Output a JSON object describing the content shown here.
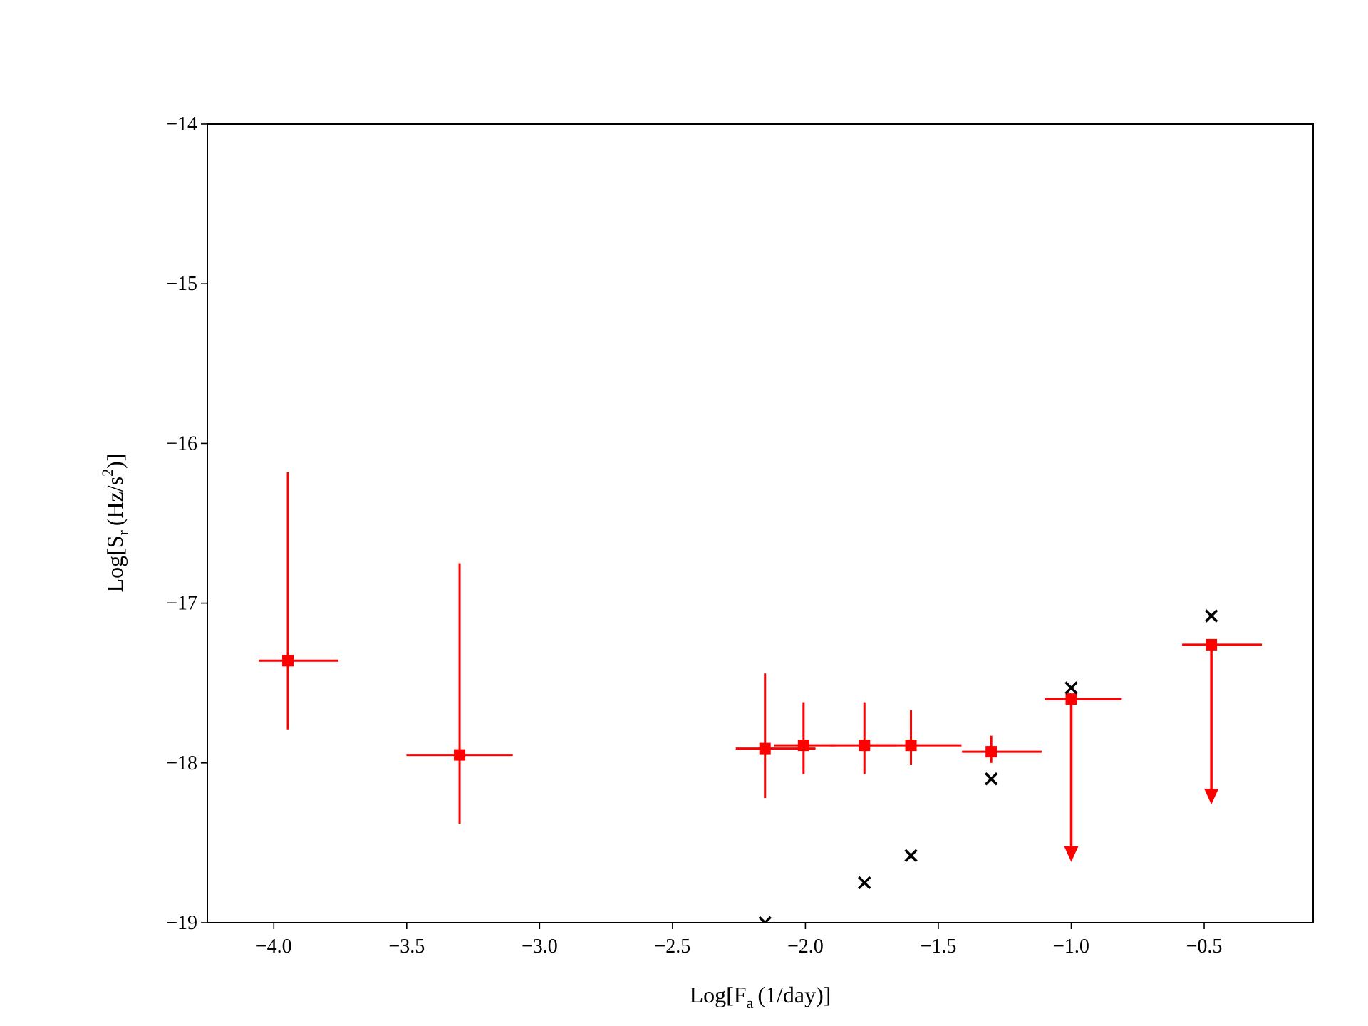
{
  "chart_data": {
    "type": "scatter",
    "xlabel": {
      "main": "Log[F",
      "sub": "a",
      "rest": "(1/day)]"
    },
    "ylabel": {
      "main": "Log[S",
      "sub": "r",
      "mid": "(Hz/s",
      "sup": "2",
      "rest": ")]"
    },
    "xlim": [
      -4.25,
      -0.09
    ],
    "ylim": [
      -19,
      -14
    ],
    "xticks": [
      {
        "value": -4.0,
        "label": "−4.0"
      },
      {
        "value": -3.5,
        "label": "−3.5"
      },
      {
        "value": -3.0,
        "label": "−3.0"
      },
      {
        "value": -2.5,
        "label": "−2.5"
      },
      {
        "value": -2.0,
        "label": "−2.0"
      },
      {
        "value": -1.5,
        "label": "−1.5"
      },
      {
        "value": -1.0,
        "label": "−1.0"
      },
      {
        "value": -0.5,
        "label": "−0.5"
      }
    ],
    "yticks": [
      {
        "value": -19,
        "label": "−19"
      },
      {
        "value": -18,
        "label": "−18"
      },
      {
        "value": -17,
        "label": "−17"
      },
      {
        "value": -16,
        "label": "−16"
      },
      {
        "value": -15,
        "label": "−15"
      },
      {
        "value": -14,
        "label": "−14"
      }
    ],
    "series": [
      {
        "color": "#ff0000",
        "marker": "square",
        "x": [
          -3.947,
          -3.301,
          -2.152,
          -2.007,
          -1.778,
          -1.603,
          -1.301,
          -1.0,
          -0.473
        ],
        "values": [
          -17.36,
          -17.95,
          -17.91,
          -17.89,
          -17.89,
          -17.89,
          -17.93,
          -17.6,
          -17.26
        ],
        "x_err_minus": [
          0.11,
          0.2,
          0.11,
          0.11,
          0.13,
          0.18,
          0.11,
          0.1,
          0.11
        ],
        "x_err_plus": [
          0.19,
          0.2,
          0.19,
          0.12,
          0.12,
          0.19,
          0.19,
          0.19,
          0.19
        ],
        "y_err_plus": [
          1.18,
          1.2,
          0.47,
          0.27,
          0.27,
          0.22,
          0.1,
          0,
          0
        ],
        "y_err_minus": [
          0.43,
          0.43,
          0.31,
          0.18,
          0.18,
          0.12,
          0.07,
          1.02,
          1.0
        ],
        "upper_limit": [
          false,
          false,
          false,
          false,
          false,
          false,
          false,
          true,
          true
        ]
      },
      {
        "color": "#000000",
        "marker": "x",
        "x": [
          -2.152,
          -1.778,
          -1.603,
          -1.301,
          -1.0,
          -0.473
        ],
        "values": [
          -19.0,
          -18.75,
          -18.58,
          -18.1,
          -17.53,
          -17.08
        ]
      }
    ]
  }
}
